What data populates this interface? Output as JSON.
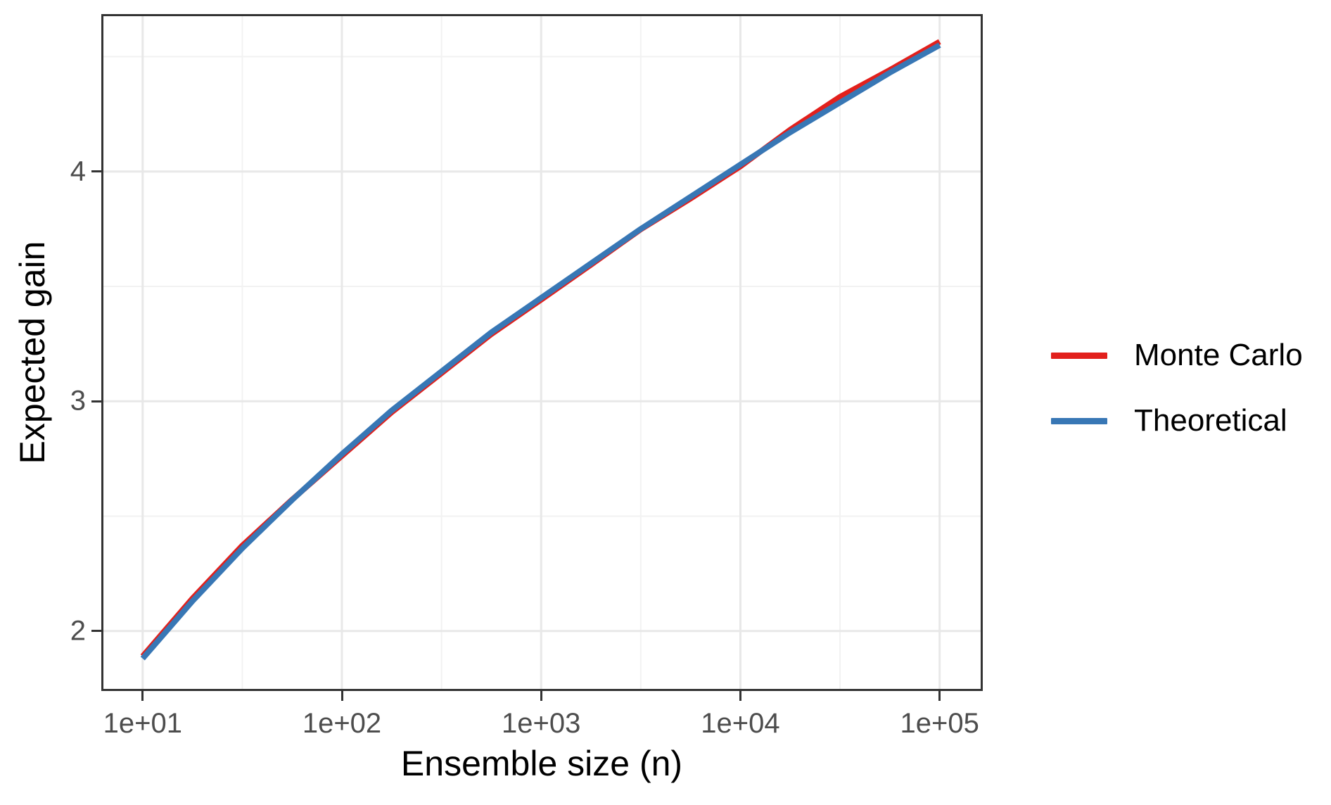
{
  "figure": {
    "background": "#ffffff"
  },
  "chart_data": {
    "type": "line",
    "title": "",
    "xlabel": "Ensemble size (n)",
    "ylabel": "Expected gain",
    "x_scale": "log10",
    "grid": true,
    "legend_position": "right",
    "x_range_log10": [
      0.803,
      5.206
    ],
    "y_range": [
      1.748,
      4.676
    ],
    "x_ticks": [
      {
        "log10": 1,
        "label": "1e+01"
      },
      {
        "log10": 2,
        "label": "1e+02"
      },
      {
        "log10": 3,
        "label": "1e+03"
      },
      {
        "log10": 4,
        "label": "1e+04"
      },
      {
        "log10": 5,
        "label": "1e+05"
      }
    ],
    "x_minor_log10": [
      1.5,
      2.5,
      3.5,
      4.5
    ],
    "y_ticks": [
      {
        "value": 2,
        "label": "2"
      },
      {
        "value": 3,
        "label": "3"
      },
      {
        "value": 4,
        "label": "4"
      }
    ],
    "y_minor": [
      2.5,
      3.5,
      4.5
    ],
    "series": [
      {
        "name": "Monte Carlo",
        "color": "#e2201c",
        "log10_x": [
          1.0,
          1.25,
          1.5,
          1.75,
          2.0,
          2.25,
          2.5,
          2.75,
          3.0,
          3.25,
          3.5,
          3.75,
          4.0,
          4.25,
          4.5,
          4.75,
          5.0
        ],
        "y": [
          1.89,
          2.142,
          2.372,
          2.572,
          2.762,
          2.952,
          3.122,
          3.292,
          3.442,
          3.594,
          3.748,
          3.882,
          4.022,
          4.182,
          4.325,
          4.442,
          4.565
        ]
      },
      {
        "name": "Theoretical",
        "color": "#3877b5",
        "log10_x": [
          1.0,
          1.25,
          1.5,
          1.75,
          2.0,
          2.25,
          2.5,
          2.75,
          3.0,
          3.25,
          3.5,
          3.75,
          4.0,
          4.25,
          4.5,
          4.75,
          5.0
        ],
        "y": [
          1.88,
          2.13,
          2.36,
          2.57,
          2.77,
          2.96,
          3.13,
          3.3,
          3.45,
          3.6,
          3.75,
          3.89,
          4.03,
          4.17,
          4.3,
          4.43,
          4.55
        ]
      }
    ],
    "grid_colors": {
      "major": "#e8e8e8",
      "minor": "#f2f2f2"
    },
    "axis_color": "#333333",
    "tick_label_color": "#4d4d4d"
  },
  "legend": {
    "items": [
      {
        "label": "Monte Carlo",
        "color": "#e2201c"
      },
      {
        "label": "Theoretical",
        "color": "#3877b5"
      }
    ]
  }
}
